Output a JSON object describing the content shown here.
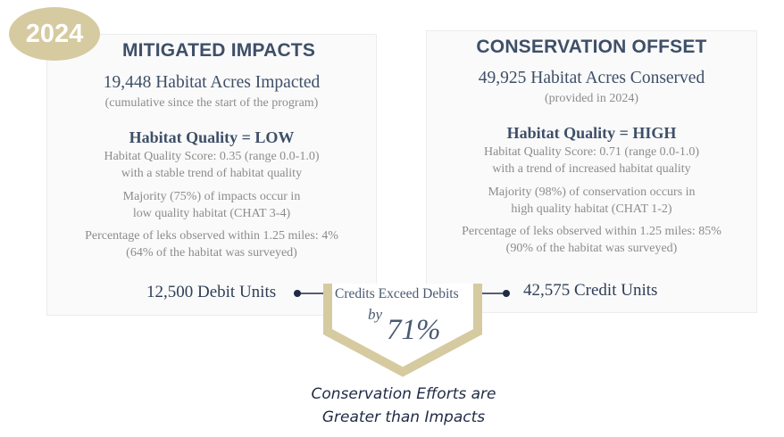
{
  "year_badge": "2024",
  "mitigated": {
    "title": "MITIGATED IMPACTS",
    "acres": "19,448 Habitat Acres Impacted",
    "acres_note": "(cumulative since the start of the program)",
    "quality": "Habitat Quality = LOW",
    "score_line1": "Habitat Quality Score: 0.35 (range 0.0-1.0)",
    "score_line2": "with a stable trend of habitat quality",
    "majority_line1": "Majority (75%) of impacts occur in",
    "majority_line2": "low quality habitat (CHAT 3-4)",
    "leks_line1": "Percentage of leks observed within 1.25 miles: 4%",
    "leks_line2": "(64% of the habitat was surveyed)",
    "units": "12,500 Debit Units"
  },
  "offset": {
    "title": "CONSERVATION OFFSET",
    "acres": "49,925 Habitat Acres Conserved",
    "acres_note": "(provided in 2024)",
    "quality": "Habitat Quality = HIGH",
    "score_line1": "Habitat Quality Score: 0.71 (range 0.0-1.0)",
    "score_line2": "with a trend of increased habitat quality",
    "majority_line1": "Majority (98%) of conservation occurs in",
    "majority_line2": "high quality habitat (CHAT 1-2)",
    "leks_line1": "Percentage of leks observed within 1.25 miles: 85%",
    "leks_line2": "(90% of the habitat was surveyed)",
    "units": "42,575 Credit Units"
  },
  "comparison": {
    "label": "Credits Exceed Debits",
    "by": "by",
    "percent": "71%"
  },
  "footer": {
    "line1": "Conservation Efforts are",
    "line2": "Greater than Impacts"
  },
  "colors": {
    "gold": "#d6caa0",
    "navy": "#1f2b45",
    "slate": "#3e4f68"
  }
}
